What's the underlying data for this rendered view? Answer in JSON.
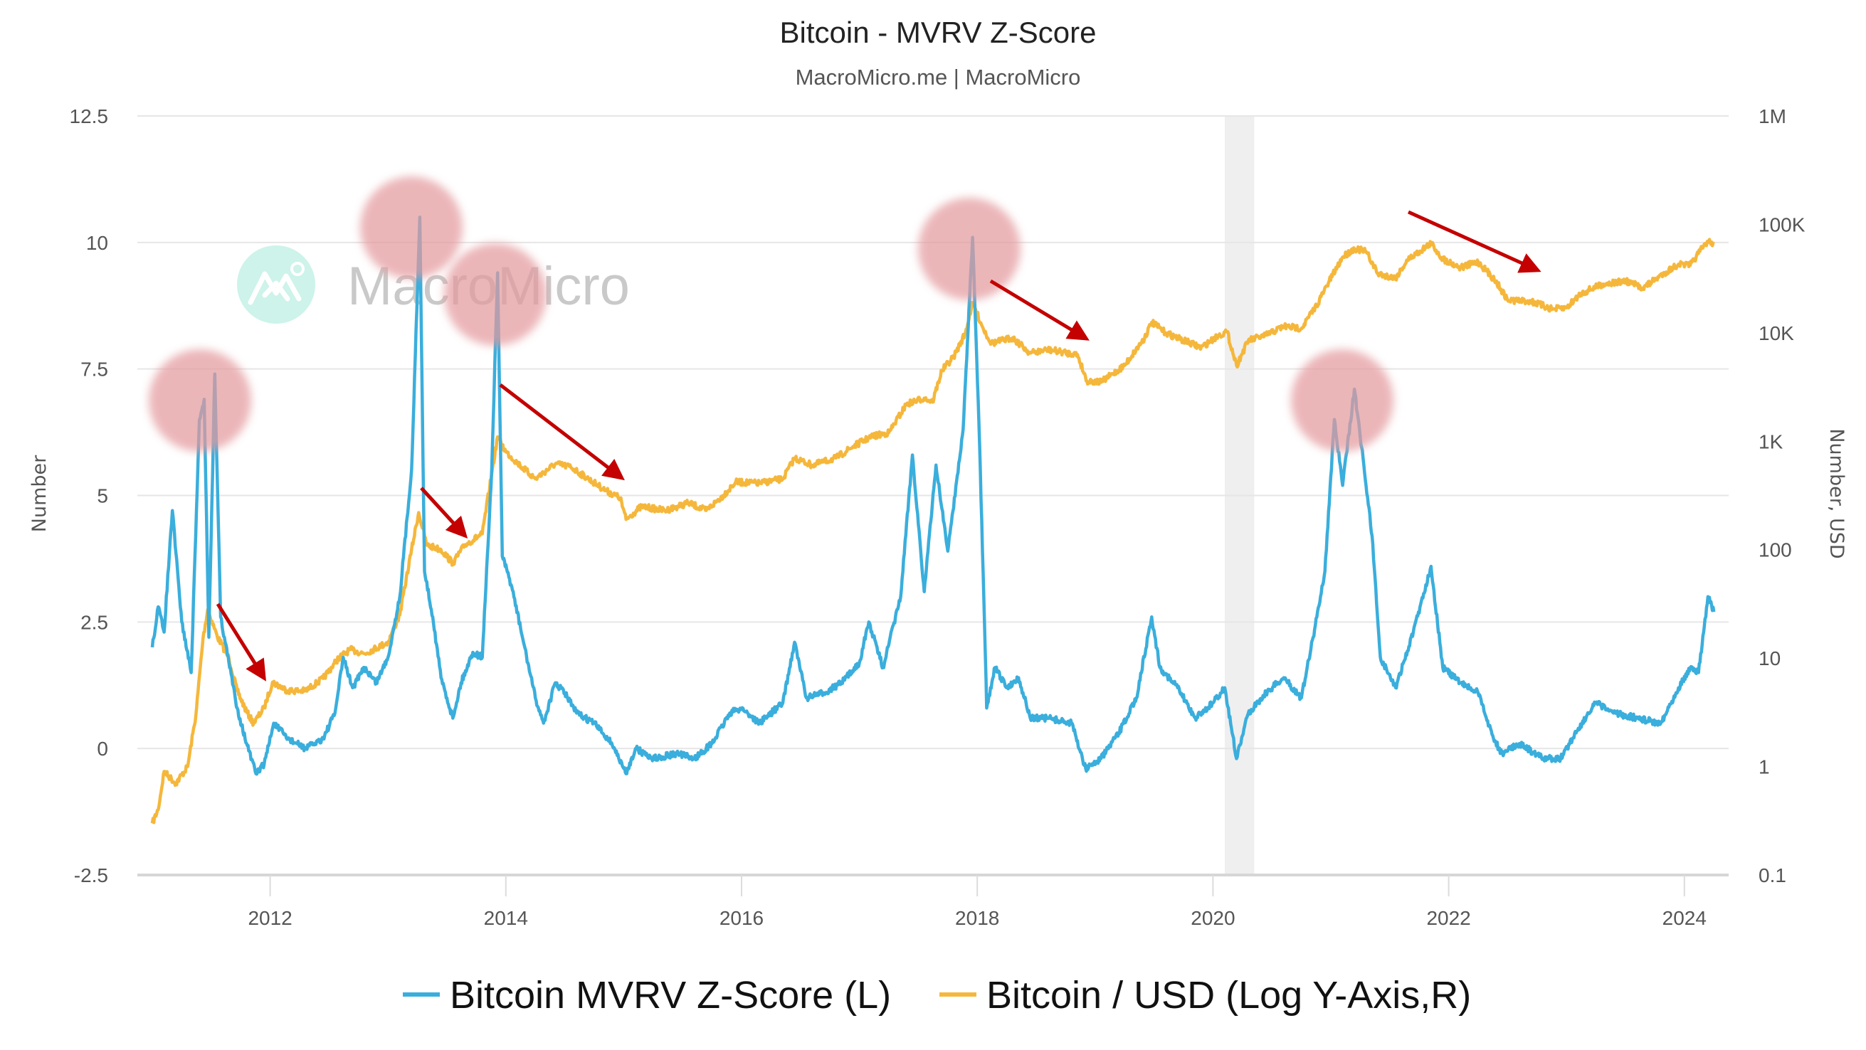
{
  "chart_data": {
    "type": "line",
    "title": "Bitcoin - MVRV Z-Score",
    "subtitle": "MacroMicro.me | MacroMicro",
    "watermark": "MacroMicro",
    "ylabel_left": "Number",
    "ylabel_right": "Number, USD",
    "x_ticks": [
      "2012",
      "2014",
      "2016",
      "2018",
      "2020",
      "2022",
      "2024"
    ],
    "xlim": [
      2011.0,
      2024.4
    ],
    "y_left": {
      "ticks": [
        "-2.5",
        "0",
        "2.5",
        "5",
        "7.5",
        "10",
        "12.5"
      ],
      "range": [
        -2.5,
        12.5
      ]
    },
    "y_right": {
      "ticks": [
        "0.1",
        "1",
        "10",
        "100",
        "1K",
        "10K",
        "100K",
        "1M"
      ],
      "range": [
        0.1,
        1000000
      ],
      "scale": "log"
    },
    "grid": true,
    "legend_position": "bottom",
    "shaded_period": [
      "2020.1",
      "2020.35"
    ],
    "shade_color": "#efefef",
    "series": [
      {
        "name": "Bitcoin MVRV Z-Score (L)",
        "axis": "left",
        "color": "#3aaedc",
        "points": [
          [
            2011.0,
            2.0
          ],
          [
            2011.05,
            2.8
          ],
          [
            2011.1,
            2.3
          ],
          [
            2011.17,
            4.7
          ],
          [
            2011.25,
            2.5
          ],
          [
            2011.33,
            1.5
          ],
          [
            2011.4,
            6.5
          ],
          [
            2011.44,
            6.9
          ],
          [
            2011.48,
            2.2
          ],
          [
            2011.53,
            7.4
          ],
          [
            2011.58,
            2.6
          ],
          [
            2011.65,
            1.7
          ],
          [
            2011.72,
            0.8
          ],
          [
            2011.8,
            0.1
          ],
          [
            2011.88,
            -0.5
          ],
          [
            2011.95,
            -0.3
          ],
          [
            2012.03,
            0.5
          ],
          [
            2012.15,
            0.2
          ],
          [
            2012.3,
            0.0
          ],
          [
            2012.45,
            0.2
          ],
          [
            2012.55,
            0.7
          ],
          [
            2012.62,
            1.8
          ],
          [
            2012.7,
            1.2
          ],
          [
            2012.8,
            1.6
          ],
          [
            2012.9,
            1.3
          ],
          [
            2013.0,
            1.8
          ],
          [
            2013.1,
            3.0
          ],
          [
            2013.2,
            5.5
          ],
          [
            2013.27,
            10.5
          ],
          [
            2013.31,
            3.5
          ],
          [
            2013.38,
            2.6
          ],
          [
            2013.45,
            1.4
          ],
          [
            2013.55,
            0.6
          ],
          [
            2013.62,
            1.3
          ],
          [
            2013.72,
            1.9
          ],
          [
            2013.8,
            1.8
          ],
          [
            2013.88,
            5.5
          ],
          [
            2013.93,
            9.4
          ],
          [
            2013.97,
            3.8
          ],
          [
            2014.05,
            3.2
          ],
          [
            2014.15,
            2.1
          ],
          [
            2014.25,
            1.0
          ],
          [
            2014.32,
            0.5
          ],
          [
            2014.42,
            1.3
          ],
          [
            2014.5,
            1.1
          ],
          [
            2014.6,
            0.7
          ],
          [
            2014.75,
            0.5
          ],
          [
            2014.9,
            0.1
          ],
          [
            2015.02,
            -0.5
          ],
          [
            2015.1,
            0.0
          ],
          [
            2015.25,
            -0.2
          ],
          [
            2015.45,
            -0.1
          ],
          [
            2015.6,
            -0.2
          ],
          [
            2015.75,
            0.1
          ],
          [
            2015.9,
            0.7
          ],
          [
            2016.0,
            0.8
          ],
          [
            2016.15,
            0.5
          ],
          [
            2016.35,
            0.9
          ],
          [
            2016.45,
            2.1
          ],
          [
            2016.55,
            1.0
          ],
          [
            2016.7,
            1.1
          ],
          [
            2016.85,
            1.3
          ],
          [
            2017.0,
            1.7
          ],
          [
            2017.08,
            2.5
          ],
          [
            2017.2,
            1.6
          ],
          [
            2017.35,
            3.0
          ],
          [
            2017.45,
            5.8
          ],
          [
            2017.55,
            3.1
          ],
          [
            2017.65,
            5.6
          ],
          [
            2017.75,
            3.9
          ],
          [
            2017.88,
            6.3
          ],
          [
            2017.96,
            10.1
          ],
          [
            2018.02,
            6.0
          ],
          [
            2018.08,
            0.8
          ],
          [
            2018.15,
            1.6
          ],
          [
            2018.25,
            1.2
          ],
          [
            2018.35,
            1.4
          ],
          [
            2018.45,
            0.6
          ],
          [
            2018.6,
            0.6
          ],
          [
            2018.8,
            0.5
          ],
          [
            2018.92,
            -0.4
          ],
          [
            2019.05,
            -0.2
          ],
          [
            2019.2,
            0.3
          ],
          [
            2019.35,
            1.0
          ],
          [
            2019.48,
            2.6
          ],
          [
            2019.55,
            1.6
          ],
          [
            2019.7,
            1.2
          ],
          [
            2019.85,
            0.6
          ],
          [
            2020.0,
            0.9
          ],
          [
            2020.1,
            1.2
          ],
          [
            2020.2,
            -0.2
          ],
          [
            2020.3,
            0.7
          ],
          [
            2020.45,
            1.1
          ],
          [
            2020.6,
            1.4
          ],
          [
            2020.75,
            1.0
          ],
          [
            2020.85,
            2.2
          ],
          [
            2020.95,
            3.5
          ],
          [
            2021.03,
            6.5
          ],
          [
            2021.1,
            5.2
          ],
          [
            2021.2,
            7.1
          ],
          [
            2021.28,
            5.6
          ],
          [
            2021.35,
            4.2
          ],
          [
            2021.42,
            1.8
          ],
          [
            2021.55,
            1.2
          ],
          [
            2021.7,
            2.3
          ],
          [
            2021.85,
            3.6
          ],
          [
            2021.95,
            1.6
          ],
          [
            2022.1,
            1.3
          ],
          [
            2022.25,
            1.1
          ],
          [
            2022.38,
            0.2
          ],
          [
            2022.45,
            -0.1
          ],
          [
            2022.6,
            0.1
          ],
          [
            2022.8,
            -0.2
          ],
          [
            2022.95,
            -0.2
          ],
          [
            2023.1,
            0.4
          ],
          [
            2023.25,
            0.9
          ],
          [
            2023.4,
            0.7
          ],
          [
            2023.6,
            0.6
          ],
          [
            2023.8,
            0.5
          ],
          [
            2023.95,
            1.2
          ],
          [
            2024.05,
            1.6
          ],
          [
            2024.12,
            1.5
          ],
          [
            2024.2,
            3.0
          ],
          [
            2024.25,
            2.7
          ]
        ]
      },
      {
        "name": "Bitcoin / USD (Log Y-Axis,R)",
        "axis": "right",
        "color": "#f5b73b",
        "points": [
          [
            2011.0,
            0.3
          ],
          [
            2011.05,
            0.4
          ],
          [
            2011.1,
            0.9
          ],
          [
            2011.2,
            0.7
          ],
          [
            2011.3,
            1.0
          ],
          [
            2011.37,
            3
          ],
          [
            2011.43,
            15
          ],
          [
            2011.47,
            28
          ],
          [
            2011.55,
            16
          ],
          [
            2011.65,
            10
          ],
          [
            2011.72,
            5
          ],
          [
            2011.8,
            3.2
          ],
          [
            2011.86,
            2.5
          ],
          [
            2011.95,
            3.5
          ],
          [
            2012.02,
            6
          ],
          [
            2012.15,
            5
          ],
          [
            2012.3,
            5
          ],
          [
            2012.45,
            6.5
          ],
          [
            2012.58,
            10
          ],
          [
            2012.68,
            12
          ],
          [
            2012.8,
            11
          ],
          [
            2013.0,
            14
          ],
          [
            2013.1,
            25
          ],
          [
            2013.2,
            100
          ],
          [
            2013.26,
            220
          ],
          [
            2013.33,
            110
          ],
          [
            2013.45,
            100
          ],
          [
            2013.55,
            75
          ],
          [
            2013.65,
            110
          ],
          [
            2013.8,
            140
          ],
          [
            2013.88,
            500
          ],
          [
            2013.93,
            1100
          ],
          [
            2014.0,
            800
          ],
          [
            2014.12,
            600
          ],
          [
            2014.25,
            450
          ],
          [
            2014.42,
            620
          ],
          [
            2014.55,
            580
          ],
          [
            2014.7,
            450
          ],
          [
            2014.85,
            350
          ],
          [
            2014.97,
            300
          ],
          [
            2015.02,
            190
          ],
          [
            2015.15,
            250
          ],
          [
            2015.35,
            230
          ],
          [
            2015.55,
            270
          ],
          [
            2015.7,
            230
          ],
          [
            2015.85,
            320
          ],
          [
            2015.95,
            420
          ],
          [
            2016.15,
            410
          ],
          [
            2016.35,
            450
          ],
          [
            2016.45,
            700
          ],
          [
            2016.6,
            600
          ],
          [
            2016.8,
            700
          ],
          [
            2016.95,
            900
          ],
          [
            2017.1,
            1100
          ],
          [
            2017.25,
            1200
          ],
          [
            2017.4,
            2200
          ],
          [
            2017.55,
            2500
          ],
          [
            2017.62,
            2300
          ],
          [
            2017.7,
            4500
          ],
          [
            2017.8,
            6000
          ],
          [
            2017.9,
            10000
          ],
          [
            2017.96,
            19000
          ],
          [
            2018.05,
            11000
          ],
          [
            2018.12,
            8000
          ],
          [
            2018.3,
            9000
          ],
          [
            2018.45,
            6500
          ],
          [
            2018.6,
            7000
          ],
          [
            2018.85,
            6300
          ],
          [
            2018.93,
            3600
          ],
          [
            2019.05,
            3500
          ],
          [
            2019.25,
            5000
          ],
          [
            2019.42,
            9000
          ],
          [
            2019.48,
            12500
          ],
          [
            2019.6,
            10000
          ],
          [
            2019.75,
            8500
          ],
          [
            2019.9,
            7300
          ],
          [
            2020.05,
            9500
          ],
          [
            2020.12,
            10200
          ],
          [
            2020.2,
            5000
          ],
          [
            2020.3,
            8500
          ],
          [
            2020.45,
            9500
          ],
          [
            2020.6,
            11500
          ],
          [
            2020.75,
            11000
          ],
          [
            2020.88,
            18000
          ],
          [
            2020.98,
            29000
          ],
          [
            2021.1,
            50000
          ],
          [
            2021.2,
            60000
          ],
          [
            2021.3,
            56000
          ],
          [
            2021.4,
            35000
          ],
          [
            2021.55,
            32000
          ],
          [
            2021.65,
            47000
          ],
          [
            2021.85,
            67000
          ],
          [
            2021.95,
            48000
          ],
          [
            2022.1,
            40000
          ],
          [
            2022.25,
            45000
          ],
          [
            2022.4,
            30000
          ],
          [
            2022.5,
            20000
          ],
          [
            2022.7,
            19500
          ],
          [
            2022.88,
            16500
          ],
          [
            2023.0,
            17000
          ],
          [
            2023.12,
            23000
          ],
          [
            2023.3,
            28000
          ],
          [
            2023.5,
            30000
          ],
          [
            2023.65,
            26000
          ],
          [
            2023.82,
            35000
          ],
          [
            2023.95,
            43000
          ],
          [
            2024.05,
            42000
          ],
          [
            2024.15,
            60000
          ],
          [
            2024.2,
            70000
          ],
          [
            2024.25,
            66000
          ]
        ]
      }
    ]
  }
}
